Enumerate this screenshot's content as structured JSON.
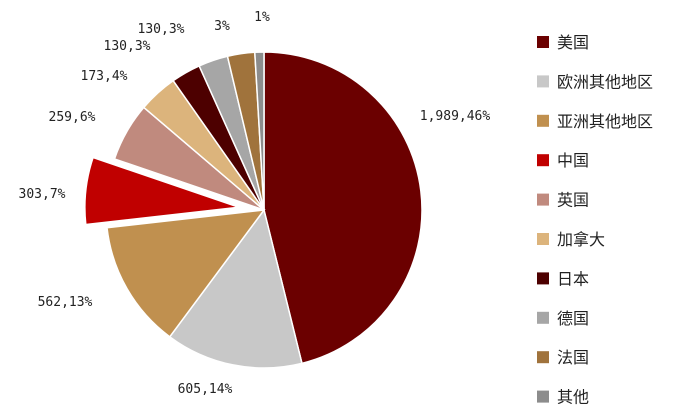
{
  "chart_data": {
    "type": "pie",
    "title": "",
    "total_label_format": "{value},{percent}",
    "slices": [
      {
        "name": "美国",
        "value": 1989,
        "percent": "46%",
        "label": "1,989,46%",
        "color": "#6b0000",
        "exploded": false
      },
      {
        "name": "欧洲其他地区",
        "value": 605,
        "percent": "14%",
        "label": "605,14%",
        "color": "#c8c8c8",
        "exploded": false
      },
      {
        "name": "亚洲其他地区",
        "value": 562,
        "percent": "13%",
        "label": "562,13%",
        "color": "#c0904f",
        "exploded": false
      },
      {
        "name": "中国",
        "value": 303,
        "percent": "7%",
        "label": "303,7%",
        "color": "#c00000",
        "exploded": true
      },
      {
        "name": "英国",
        "value": 259,
        "percent": "6%",
        "label": "259,6%",
        "color": "#c08a7e",
        "exploded": false
      },
      {
        "name": "加拿大",
        "value": 173,
        "percent": "4%",
        "label": "173,4%",
        "color": "#dcb47c",
        "exploded": false
      },
      {
        "name": "日本",
        "value": 130,
        "percent": "3%",
        "label": "130,3%",
        "color": "#4d0000",
        "exploded": false
      },
      {
        "name": "德国",
        "value": 130,
        "percent": "3%",
        "label": "130,3%",
        "color": "#a6a6a6",
        "exploded": false
      },
      {
        "name": "法国",
        "value": 120,
        "percent": "3%",
        "label": "3%",
        "color": "#a0733c",
        "exploded": false
      },
      {
        "name": "其他",
        "value": 40,
        "percent": "1%",
        "label": "1%",
        "color": "#8c8c8c",
        "exploded": false
      }
    ],
    "legend_position": "right"
  }
}
